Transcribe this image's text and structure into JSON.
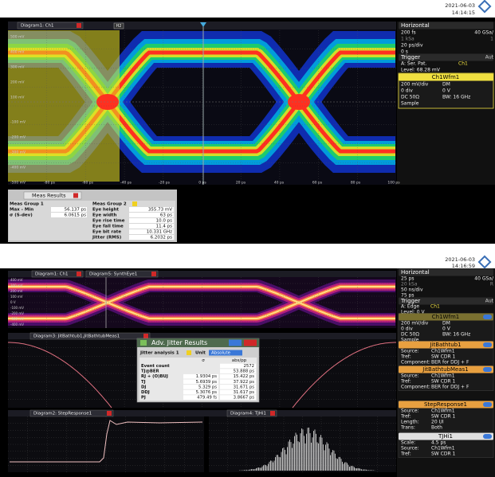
{
  "top": {
    "timestamp": {
      "date": "2021-06-03",
      "time": "14:14:15"
    },
    "tab": "Diagram1: Ch1",
    "tab_badge": "H2",
    "y_labels": [
      "500 mV",
      "400 mV",
      "300 mV",
      "200 mV",
      "100 mV",
      "-100 mV",
      "-200 mV",
      "-300 mV",
      "-400 mV",
      "-500 mV"
    ],
    "x_labels": [
      "-80 ps",
      "-60 ps",
      "-40 ps",
      "-20 ps",
      "0 ps",
      "20 ps",
      "40 ps",
      "60 ps",
      "80 ps",
      "100 ps"
    ],
    "horizontal": {
      "title": "Horizontal",
      "rows": [
        [
          "200 fs",
          "40 GSa/"
        ],
        [
          "1 kSa",
          "1"
        ],
        [
          "20 ps/div"
        ],
        [
          "0 s"
        ]
      ]
    },
    "trigger": {
      "title": "Trigger",
      "mode": "Aut",
      "source": "A:  Ser. Pat.",
      "channel": "Ch1",
      "level": "Level: 68.28 mV"
    },
    "wfm": {
      "title": "Ch1Wfm1",
      "rows": [
        [
          "200 mV/div",
          "DM"
        ],
        [
          "0 div",
          "0 V"
        ],
        [
          "DC 50Ω",
          "BW: 16 GHz"
        ],
        [
          "Sample"
        ]
      ]
    },
    "meas": {
      "title": "Meas Results",
      "group1": {
        "title": "Meas Group 1",
        "rows": [
          [
            "Max - Min",
            "56.137 ps"
          ],
          [
            "σ (S-dev)",
            "6.0615 ps"
          ]
        ]
      },
      "group2": {
        "title": "Meas Group 2",
        "rows": [
          [
            "Eye height",
            "355.73 mV"
          ],
          [
            "Eye width",
            "63 ps"
          ],
          [
            "Eye rise time",
            "10.0 ps"
          ],
          [
            "Eye fall time",
            "11.4 ps"
          ],
          [
            "Eye bit rate",
            "10.331 GHz"
          ],
          [
            "Jitter (RMS)",
            "6.2032 ps"
          ]
        ]
      }
    }
  },
  "bottom": {
    "timestamp": {
      "date": "2021-06-03",
      "time": "14:16:59"
    },
    "tabs": [
      "Diagram1: Ch1",
      "Diagram5: SynthEye1"
    ],
    "tab_bathtub": "Diagram3: JitBathtub1,JitBathtubMeas1",
    "tab_step": "Diagram2: StepResponse1",
    "tab_tj": "Diagram4: TJHi1",
    "eye_y_labels": [
      "400 mV",
      "300 mV",
      "200 mV",
      "100 mV",
      "0 V",
      "-100 mV",
      "-200 mV",
      "-300 mV",
      "-400 mV"
    ],
    "horizontal": {
      "title": "Horizontal",
      "rows": [
        [
          "25 ps",
          "40 GSa/"
        ],
        [
          "20 kSa",
          "R"
        ],
        [
          "50 ns/div"
        ],
        [
          "75 ps"
        ]
      ]
    },
    "trigger": {
      "title": "Trigger",
      "mode": "Aut",
      "source": "A:  Edge",
      "channel": "Ch1",
      "level": "Level: 0 V"
    },
    "panels": [
      {
        "title": "Ch1Wfm1",
        "rows": [
          [
            "200 mV/div",
            "DM"
          ],
          [
            "0 div",
            "0 V"
          ],
          [
            "DC 50Ω",
            "BW: 16 GHz"
          ],
          [
            "Sample"
          ]
        ]
      },
      {
        "title": "JitBathtub1",
        "rows": [
          [
            "Source:",
            "Ch1Wfm1"
          ],
          [
            "Tref:",
            "SW CDR 1"
          ],
          [
            "Component:",
            "BER for DDJ + F"
          ]
        ]
      },
      {
        "title": "JitBathtubMeas1",
        "rows": [
          [
            "Source:",
            "Ch1Wfm1"
          ],
          [
            "Tref:",
            "SW CDR 1"
          ],
          [
            "Component:",
            "BER for DDJ + F"
          ]
        ]
      },
      {
        "title": "StepResponse1",
        "rows": [
          [
            "Source:",
            "Ch1Wfm1"
          ],
          [
            "Tref:",
            "SW CDR 1"
          ],
          [
            "Length:",
            "20 UI"
          ],
          [
            "Trans:",
            "Both"
          ]
        ]
      },
      {
        "title": "TJHi1",
        "rows": [
          [
            "Scale:",
            "4.5 ps"
          ],
          [
            "Source:",
            "Ch1Wfm1"
          ],
          [
            "Tref:",
            "SW CDR 1"
          ]
        ]
      }
    ],
    "jitter": {
      "title": "Adv. Jitter Results",
      "analysis": "Jitter analysis 1",
      "unit_label": "Unit",
      "unit": "Absolute",
      "columns": [
        "σ",
        "abs/pp"
      ],
      "rows": [
        [
          "Event count",
          "2572"
        ],
        [
          "TJ@BER",
          "53.888 ps"
        ],
        [
          "RJ + (O)BUJ",
          "1.9304 ps",
          "15.422 ps"
        ],
        [
          "TJ",
          "5.6939 ps",
          "37.922 ps"
        ],
        [
          "DJ",
          "5.329 ps",
          "31.671 ps"
        ],
        [
          "DDJ",
          "5.3076 ps",
          "31.617 ps"
        ],
        [
          "PJ",
          "479.49 fs",
          "3.8667 ps"
        ]
      ]
    }
  }
}
